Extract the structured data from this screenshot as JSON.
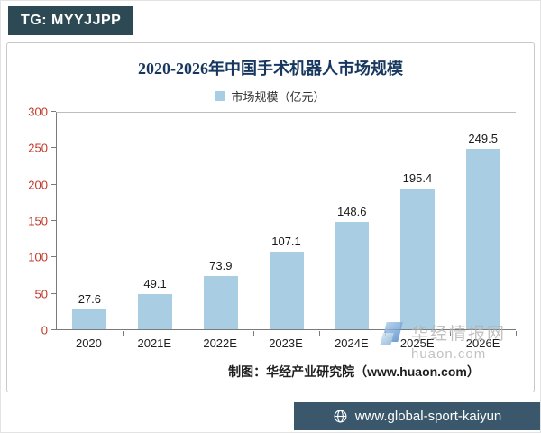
{
  "badge": {
    "label": "TG: MYYJJPP"
  },
  "chart": {
    "legend_label": "市场规模（亿元）",
    "credit": "制图：华经产业研究院（www.huaon.com）"
  },
  "chart_data": {
    "type": "bar",
    "title": "2020-2026年中国手术机器人市场规模",
    "categories": [
      "2020",
      "2021E",
      "2022E",
      "2023E",
      "2024E",
      "2025E",
      "2026E"
    ],
    "values": [
      27.6,
      49.1,
      73.9,
      107.1,
      148.6,
      195.4,
      249.5
    ],
    "series_name": "市场规模（亿元）",
    "xlabel": "",
    "ylabel": "",
    "ylim": [
      0,
      300
    ],
    "yticks": [
      0,
      50,
      100,
      150,
      200,
      250,
      300
    ],
    "grid": false,
    "legend_position": "top"
  },
  "watermark": {
    "line1": "华经情报网",
    "line2": "huaon.com"
  },
  "footer": {
    "label": "www.global-sport-kaiyun"
  },
  "colors": {
    "bar": "#a9cee3",
    "title": "#17375e",
    "y_axis_label": "#c0392b",
    "badge_bg": "#2d4a54",
    "footer_bg": "#3a576b"
  }
}
